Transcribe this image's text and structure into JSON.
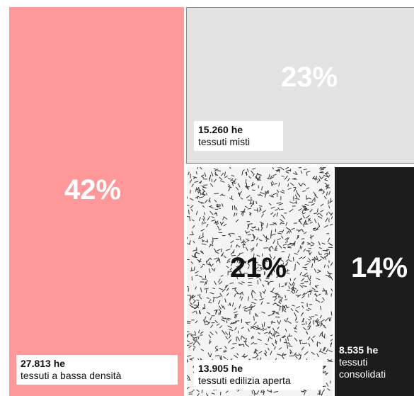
{
  "chart_data": {
    "type": "treemap",
    "segments": [
      {
        "key": "bassa",
        "name": "tessuti a bassa densità",
        "value_label": "27.813 he",
        "value": 27813,
        "percent_label": "42%",
        "color": "#ff9999",
        "pct_color": "#ffffff"
      },
      {
        "key": "misti",
        "name": "tessuti misti",
        "value_label": "15.260 he",
        "value": 15260,
        "percent_label": "23%",
        "color": "#e3e3e3",
        "pct_color": "#ffffff"
      },
      {
        "key": "aperta",
        "name": "tessuti edilizia aperta",
        "value_label": "13.905 he",
        "value": 13905,
        "percent_label": "21%",
        "color": "#f4f4f4",
        "pct_color": "#111111",
        "pattern": "hatched"
      },
      {
        "key": "consolidati",
        "name": "tessuti consolidati",
        "value_label": "8.535 he",
        "value": 8535,
        "percent_label": "14%",
        "color": "#1c1c1c",
        "pct_color": "#ffffff"
      }
    ]
  }
}
